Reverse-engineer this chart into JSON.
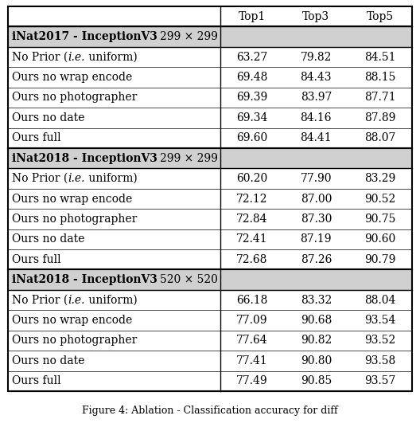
{
  "col_headers": [
    "",
    "Top1",
    "Top3",
    "Top5"
  ],
  "sections": [
    {
      "header_bold": "iNat2017 - InceptionV3",
      "header_normal": "299 × 299",
      "rows": [
        [
          "No Prior (i.e. uniform)",
          "63.27",
          "79.82",
          "84.51"
        ],
        [
          "Ours no wrap encode",
          "69.48",
          "84.43",
          "88.15"
        ],
        [
          "Ours no photographer",
          "69.39",
          "83.97",
          "87.71"
        ],
        [
          "Ours no date",
          "69.34",
          "84.16",
          "87.89"
        ],
        [
          "Ours full",
          "69.60",
          "84.41",
          "88.07"
        ]
      ]
    },
    {
      "header_bold": "iNat2018 - InceptionV3",
      "header_normal": "299 × 299",
      "rows": [
        [
          "No Prior (i.e. uniform)",
          "60.20",
          "77.90",
          "83.29"
        ],
        [
          "Ours no wrap encode",
          "72.12",
          "87.00",
          "90.52"
        ],
        [
          "Ours no photographer",
          "72.84",
          "87.30",
          "90.75"
        ],
        [
          "Ours no date",
          "72.41",
          "87.19",
          "90.60"
        ],
        [
          "Ours full",
          "72.68",
          "87.26",
          "90.79"
        ]
      ]
    },
    {
      "header_bold": "iNat2018 - InceptionV3",
      "header_normal": "520 × 520",
      "rows": [
        [
          "No Prior (i.e. uniform)",
          "66.18",
          "83.32",
          "88.04"
        ],
        [
          "Ours no wrap encode",
          "77.09",
          "90.68",
          "93.54"
        ],
        [
          "Ours no photographer",
          "77.64",
          "90.82",
          "93.52"
        ],
        [
          "Ours no date",
          "77.41",
          "90.80",
          "93.58"
        ],
        [
          "Ours full",
          "77.49",
          "90.85",
          "93.57"
        ]
      ]
    }
  ],
  "fig_width": 5.28,
  "fig_height": 5.46,
  "dpi": 100,
  "font_size": 10.0,
  "caption_font_size": 9.0,
  "caption": "Figure 4: Ablation - Classification accuracy for diff"
}
